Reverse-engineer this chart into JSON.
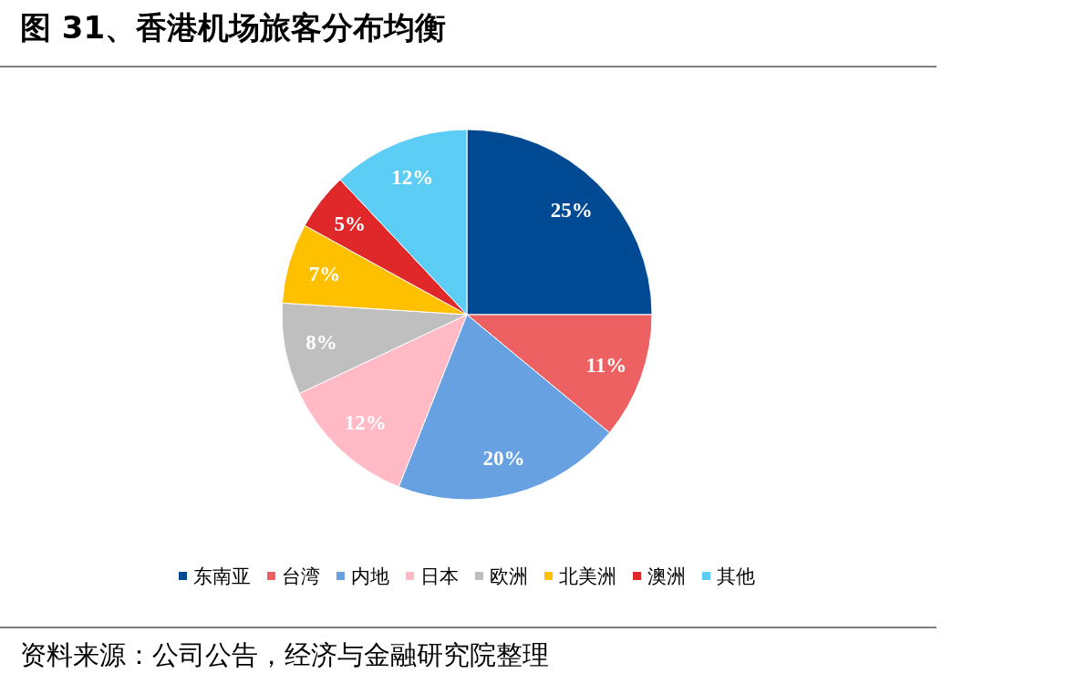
{
  "chart_data": {
    "type": "pie",
    "title": "图 31、香港机场旅客分布均衡",
    "categories": [
      "东南亚",
      "台湾",
      "内地",
      "日本",
      "欧洲",
      "北美洲",
      "澳洲",
      "其他"
    ],
    "values": [
      25,
      11,
      20,
      12,
      8,
      7,
      5,
      12
    ],
    "colors": [
      "#004a93",
      "#ee6162",
      "#67a1e2",
      "#ffbac6",
      "#bfbfbf",
      "#ffc000",
      "#e0282a",
      "#5ccdf4"
    ],
    "value_labels": [
      "25%",
      "11%",
      "20%",
      "12%",
      "8%",
      "7%",
      "5%",
      "12%"
    ],
    "legend": "bottom",
    "annotations": [
      "资料来源：公司公告，经济与金融研究院整理"
    ]
  }
}
